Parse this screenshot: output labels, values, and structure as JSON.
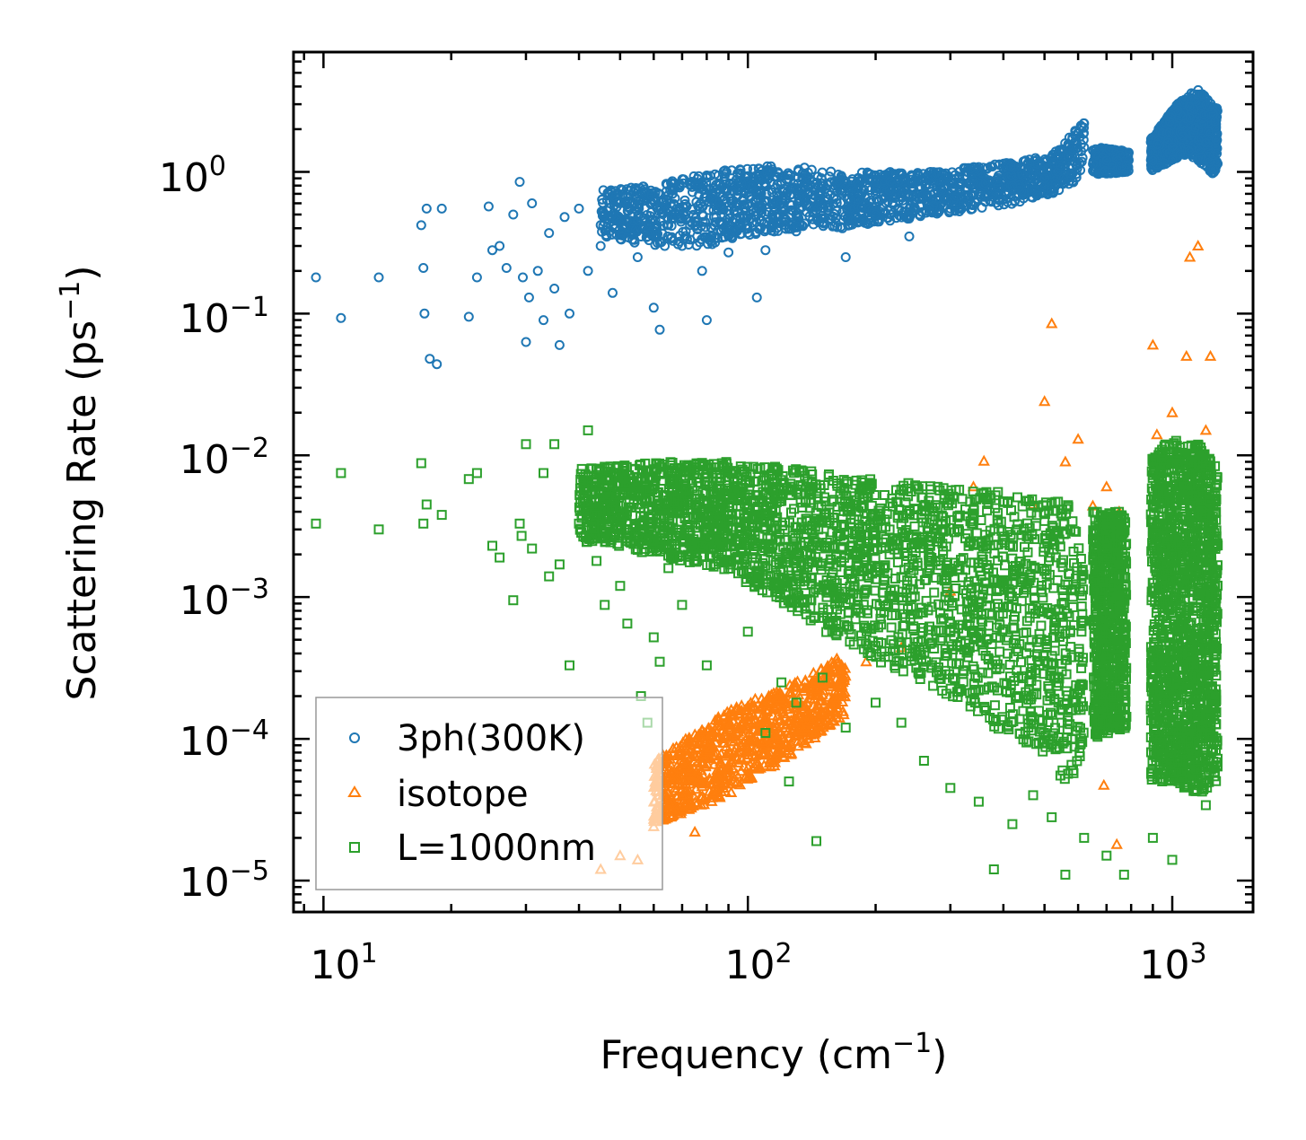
{
  "chart_data": {
    "type": "scatter",
    "xscale": "log",
    "yscale": "log",
    "xlim": [
      8.5,
      1550
    ],
    "ylim": [
      6e-06,
      7.0
    ],
    "xlabel": "Frequency (cm",
    "xlabel_unit_exp": "−1",
    "ylabel": "Scattering Rate (ps",
    "ylabel_unit_exp": "−1",
    "x_ticks": [
      {
        "base": "10",
        "exp": "1",
        "value": 10
      },
      {
        "base": "10",
        "exp": "2",
        "value": 100
      },
      {
        "base": "10",
        "exp": "3",
        "value": 1000
      }
    ],
    "y_ticks": [
      {
        "base": "10",
        "exp": "0",
        "value": 1
      },
      {
        "base": "10",
        "exp": "−1",
        "value": 0.1
      },
      {
        "base": "10",
        "exp": "−2",
        "value": 0.01
      },
      {
        "base": "10",
        "exp": "−3",
        "value": 0.001
      },
      {
        "base": "10",
        "exp": "−4",
        "value": 0.0001
      },
      {
        "base": "10",
        "exp": "−5",
        "value": 1e-05
      }
    ],
    "legend_position": "lower-left",
    "series": [
      {
        "name": "3ph(300K)",
        "marker": "circle",
        "color": "#1f77b4",
        "points": [
          [
            9.6,
            0.18
          ],
          [
            11,
            0.093
          ],
          [
            13.5,
            0.18
          ],
          [
            17,
            0.42
          ],
          [
            17.2,
            0.21
          ],
          [
            17.3,
            0.1
          ],
          [
            17.5,
            0.55
          ],
          [
            17.8,
            0.048
          ],
          [
            18.5,
            0.044
          ],
          [
            19,
            0.55
          ],
          [
            22,
            0.095
          ],
          [
            23,
            0.18
          ],
          [
            24.5,
            0.57
          ],
          [
            25,
            0.28
          ],
          [
            26,
            0.3
          ],
          [
            27,
            0.21
          ],
          [
            28,
            0.5
          ],
          [
            29,
            0.85
          ],
          [
            29.5,
            0.18
          ],
          [
            30,
            0.063
          ],
          [
            30.5,
            0.13
          ],
          [
            31,
            0.6
          ],
          [
            32,
            0.2
          ],
          [
            33,
            0.09
          ],
          [
            34,
            0.37
          ],
          [
            35,
            0.15
          ],
          [
            36,
            0.06
          ],
          [
            37,
            0.48
          ],
          [
            38,
            0.1
          ],
          [
            40,
            0.55
          ],
          [
            42,
            0.2
          ],
          [
            45,
            0.3
          ],
          [
            48,
            0.14
          ],
          [
            50,
            0.6
          ],
          [
            55,
            0.25
          ],
          [
            60,
            0.11
          ],
          [
            62,
            0.077
          ],
          [
            65,
            0.42
          ],
          [
            70,
            0.3
          ],
          [
            78,
            0.2
          ],
          [
            80,
            0.09
          ],
          [
            85,
            0.55
          ],
          [
            90,
            0.27
          ],
          [
            100,
            0.4
          ],
          [
            105,
            0.13
          ],
          [
            110,
            0.28
          ],
          [
            120,
            0.45
          ],
          [
            130,
            0.38
          ],
          [
            150,
            0.6
          ],
          [
            170,
            0.25
          ],
          [
            200,
            0.5
          ],
          [
            240,
            0.35
          ],
          [
            300,
            0.55
          ],
          [
            350,
            0.7
          ],
          [
            420,
            0.8
          ],
          [
            500,
            0.9
          ],
          [
            550,
            1.2
          ],
          [
            620,
            2.2
          ],
          [
            700,
            1.2
          ],
          [
            760,
            1.1
          ],
          [
            900,
            1.2
          ],
          [
            1000,
            1.5
          ],
          [
            1100,
            2.4
          ],
          [
            1200,
            1.6
          ],
          [
            1250,
            1.3
          ]
        ],
        "band": [
          [
            45,
            0.35,
            0.75
          ],
          [
            60,
            0.3,
            0.8
          ],
          [
            80,
            0.3,
            1.0
          ],
          [
            100,
            0.35,
            1.1
          ],
          [
            130,
            0.4,
            1.1
          ],
          [
            170,
            0.4,
            1.0
          ],
          [
            220,
            0.45,
            1.0
          ],
          [
            280,
            0.5,
            1.0
          ],
          [
            350,
            0.55,
            1.1
          ],
          [
            430,
            0.6,
            1.2
          ],
          [
            520,
            0.7,
            1.3
          ],
          [
            600,
            0.8,
            2.1
          ],
          [
            620,
            1.0,
            2.5
          ]
        ],
        "band2": [
          [
            650,
            0.95,
            1.5
          ],
          [
            790,
            1.0,
            1.4
          ]
        ],
        "band3": [
          [
            890,
            1.0,
            1.7
          ],
          [
            1050,
            1.3,
            3.3
          ],
          [
            1150,
            1.2,
            3.8
          ],
          [
            1280,
            0.9,
            2.8
          ]
        ]
      },
      {
        "name": "isotope",
        "marker": "triangle",
        "color": "#ff7f0e",
        "points": [
          [
            45,
            1.2e-05
          ],
          [
            50,
            1.5e-05
          ],
          [
            55,
            1.4e-05
          ],
          [
            60,
            2.4e-05
          ],
          [
            70,
            4e-05
          ],
          [
            75,
            2.2e-05
          ],
          [
            90,
            6e-05
          ],
          [
            110,
            8e-05
          ],
          [
            150,
            0.00015
          ],
          [
            190,
            0.00035
          ],
          [
            230,
            0.00044
          ],
          [
            300,
            0.0011
          ],
          [
            340,
            0.006
          ],
          [
            360,
            0.0091
          ],
          [
            470,
            0.0045
          ],
          [
            500,
            0.024
          ],
          [
            520,
            0.085
          ],
          [
            560,
            0.009
          ],
          [
            600,
            0.013
          ],
          [
            650,
            0.0044
          ],
          [
            700,
            0.006
          ],
          [
            750,
            0.004
          ],
          [
            900,
            0.06
          ],
          [
            920,
            0.014
          ],
          [
            1000,
            0.02
          ],
          [
            1080,
            0.05
          ],
          [
            1100,
            0.25
          ],
          [
            1150,
            0.3
          ],
          [
            1200,
            0.015
          ],
          [
            1230,
            0.05
          ],
          [
            690,
            4.7e-05
          ],
          [
            740,
            1.8e-05
          ]
        ],
        "band": [
          [
            60,
            2.5e-05,
            7e-05
          ],
          [
            90,
            4e-05,
            0.00016
          ],
          [
            130,
            8e-05,
            0.00025
          ],
          [
            170,
            0.00015,
            0.0004
          ]
        ]
      },
      {
        "name": "L=1000nm",
        "marker": "square",
        "color": "#2ca02c",
        "points": [
          [
            9.6,
            0.0033
          ],
          [
            11,
            0.0075
          ],
          [
            13.5,
            0.003
          ],
          [
            17,
            0.0088
          ],
          [
            17.2,
            0.0033
          ],
          [
            17.5,
            0.0045
          ],
          [
            19,
            0.0038
          ],
          [
            22,
            0.0068
          ],
          [
            23,
            0.0075
          ],
          [
            25,
            0.0023
          ],
          [
            26,
            0.0019
          ],
          [
            28,
            0.00095
          ],
          [
            29,
            0.0033
          ],
          [
            29.3,
            0.0027
          ],
          [
            30,
            0.012
          ],
          [
            31,
            0.0022
          ],
          [
            33,
            0.0075
          ],
          [
            34,
            0.0014
          ],
          [
            35,
            0.012
          ],
          [
            36,
            0.0017
          ],
          [
            38,
            0.00033
          ],
          [
            40,
            0.0033
          ],
          [
            42,
            0.015
          ],
          [
            44,
            0.0018
          ],
          [
            46,
            0.00088
          ],
          [
            50,
            0.0012
          ],
          [
            52,
            0.00065
          ],
          [
            55,
            0.0045
          ],
          [
            56,
            0.0002
          ],
          [
            58,
            0.00013
          ],
          [
            60,
            0.00052
          ],
          [
            62,
            0.00035
          ],
          [
            65,
            0.0016
          ],
          [
            70,
            0.00088
          ],
          [
            75,
            0.0045
          ],
          [
            80,
            0.00033
          ],
          [
            90,
            0.0044
          ],
          [
            100,
            0.00057
          ],
          [
            110,
            0.00011
          ],
          [
            120,
            0.00025
          ],
          [
            130,
            0.00018
          ],
          [
            150,
            0.00027
          ],
          [
            170,
            0.00012
          ],
          [
            200,
            0.00018
          ],
          [
            230,
            0.00013
          ],
          [
            260,
            7e-05
          ],
          [
            300,
            4.5e-05
          ],
          [
            350,
            3.6e-05
          ],
          [
            380,
            1.2e-05
          ],
          [
            420,
            2.5e-05
          ],
          [
            470,
            4e-05
          ],
          [
            520,
            2.8e-05
          ],
          [
            560,
            1.1e-05
          ],
          [
            620,
            2e-05
          ],
          [
            700,
            1.5e-05
          ],
          [
            770,
            1.1e-05
          ],
          [
            900,
            2e-05
          ],
          [
            1000,
            1.4e-05
          ],
          [
            1100,
            6.3e-05
          ],
          [
            1200,
            3.4e-05
          ],
          [
            1250,
            6.9e-05
          ],
          [
            145,
            1.9e-05
          ],
          [
            125,
            5e-05
          ]
        ],
        "band": [
          [
            40,
            0.0025,
            0.008
          ],
          [
            60,
            0.002,
            0.009
          ],
          [
            90,
            0.0015,
            0.009
          ],
          [
            130,
            0.0008,
            0.008
          ],
          [
            180,
            0.0004,
            0.007
          ],
          [
            230,
            0.0003,
            0.0065
          ],
          [
            300,
            0.0002,
            0.006
          ],
          [
            400,
            0.0001,
            0.0055
          ],
          [
            500,
            8e-05,
            0.005
          ],
          [
            580,
            4e-05,
            0.0045
          ],
          [
            620,
            0.0001,
            0.002
          ]
        ],
        "band2": [
          [
            650,
            0.0001,
            0.004
          ],
          [
            780,
            0.00012,
            0.004
          ]
        ],
        "band3": [
          [
            890,
            5e-05,
            0.01
          ],
          [
            1000,
            5e-05,
            0.013
          ],
          [
            1150,
            4e-05,
            0.012
          ],
          [
            1280,
            5e-05,
            0.008
          ]
        ]
      }
    ]
  }
}
